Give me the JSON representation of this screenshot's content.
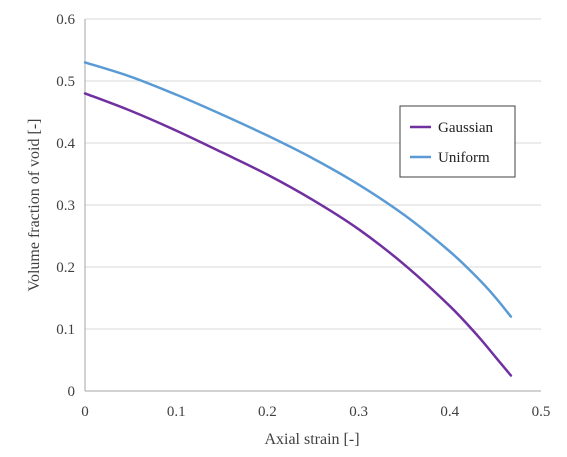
{
  "chart_data": {
    "type": "line",
    "title": "",
    "xlabel": "Axial strain [-]",
    "ylabel": "Volume fraction of void [-]",
    "xlim": [
      0,
      0.5
    ],
    "ylim": [
      0,
      0.6
    ],
    "xticks": [
      0,
      0.1,
      0.2,
      0.3,
      0.4,
      0.5
    ],
    "xtick_labels": [
      "0",
      "0.1",
      "0.2",
      "0.3",
      "0.4",
      "0.5"
    ],
    "yticks": [
      0,
      0.1,
      0.2,
      0.3,
      0.4,
      0.5,
      0.6
    ],
    "ytick_labels": [
      "0",
      "0.1",
      "0.2",
      "0.3",
      "0.4",
      "0.5",
      "0.6"
    ],
    "grid": {
      "horizontal": true,
      "vertical": false
    },
    "legend_position": "right",
    "series": [
      {
        "name": "Gaussian",
        "color": "#7030A0",
        "x": [
          0,
          0.05,
          0.1,
          0.15,
          0.2,
          0.25,
          0.3,
          0.35,
          0.4,
          0.43,
          0.45,
          0.467
        ],
        "y": [
          0.48,
          0.452,
          0.42,
          0.385,
          0.349,
          0.308,
          0.261,
          0.204,
          0.137,
          0.09,
          0.055,
          0.025
        ]
      },
      {
        "name": "Uniform",
        "color": "#5B9BD5",
        "x": [
          0,
          0.05,
          0.1,
          0.15,
          0.2,
          0.25,
          0.3,
          0.35,
          0.4,
          0.43,
          0.45,
          0.467
        ],
        "y": [
          0.53,
          0.507,
          0.478,
          0.446,
          0.412,
          0.375,
          0.333,
          0.284,
          0.225,
          0.183,
          0.151,
          0.12
        ]
      }
    ]
  }
}
